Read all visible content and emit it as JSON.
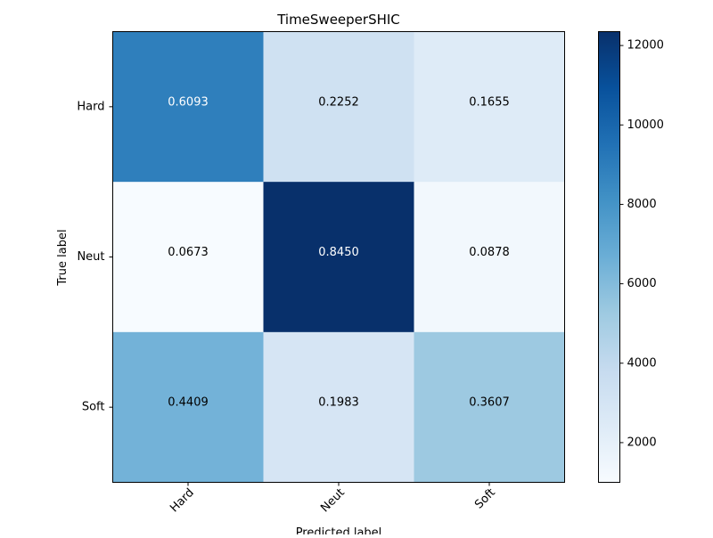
{
  "chart_data": {
    "type": "heatmap",
    "title": "TimeSweeperSHIC",
    "xlabel": "Predicted label",
    "ylabel": "True label",
    "x_categories": [
      "Hard",
      "Neut",
      "Soft"
    ],
    "y_categories": [
      "Hard",
      "Neut",
      "Soft"
    ],
    "cell_labels": [
      [
        "0.6093",
        "0.2252",
        "0.1655"
      ],
      [
        "0.0673",
        "0.8450",
        "0.0878"
      ],
      [
        "0.4409",
        "0.1983",
        "0.3607"
      ]
    ],
    "cell_values": [
      [
        0.6093,
        0.2252,
        0.1655
      ],
      [
        0.0673,
        0.845,
        0.0878
      ],
      [
        0.4409,
        0.1983,
        0.3607
      ]
    ],
    "colorbar": {
      "colormap": "Blues",
      "range": [
        1000,
        12350
      ],
      "ticks": [
        2000,
        4000,
        6000,
        8000,
        10000,
        12000
      ]
    }
  }
}
